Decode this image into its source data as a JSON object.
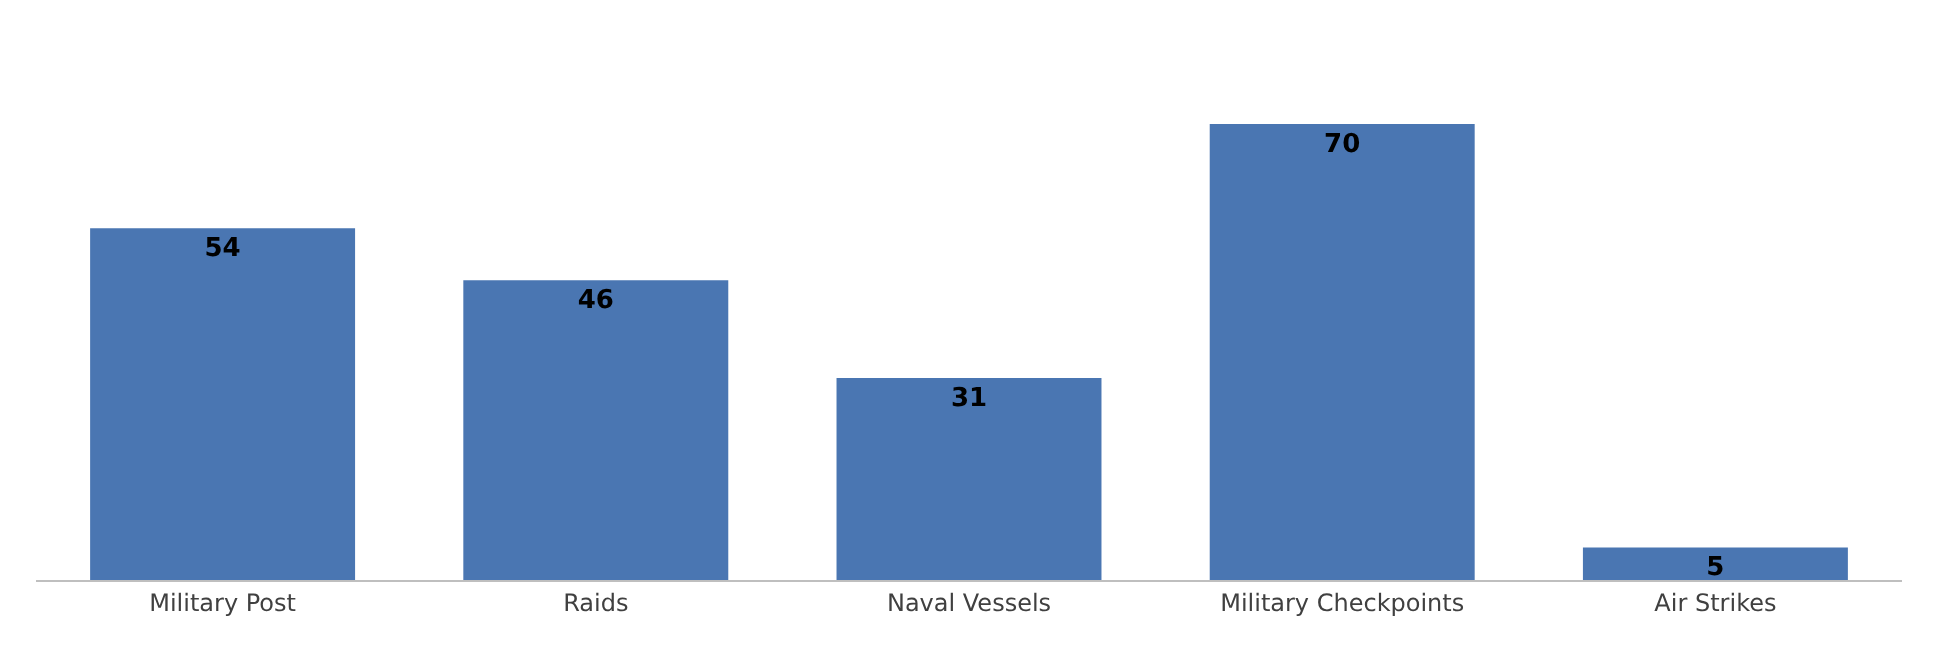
{
  "chart_data": {
    "type": "bar",
    "categories": [
      "Military Post",
      "Raids",
      "Naval Vessels",
      "Military Checkpoints",
      "Air Strikes"
    ],
    "values": [
      54,
      46,
      31,
      70,
      5
    ],
    "color": "#4a76b2",
    "data_labels": true,
    "grid": false,
    "legend": false
  }
}
